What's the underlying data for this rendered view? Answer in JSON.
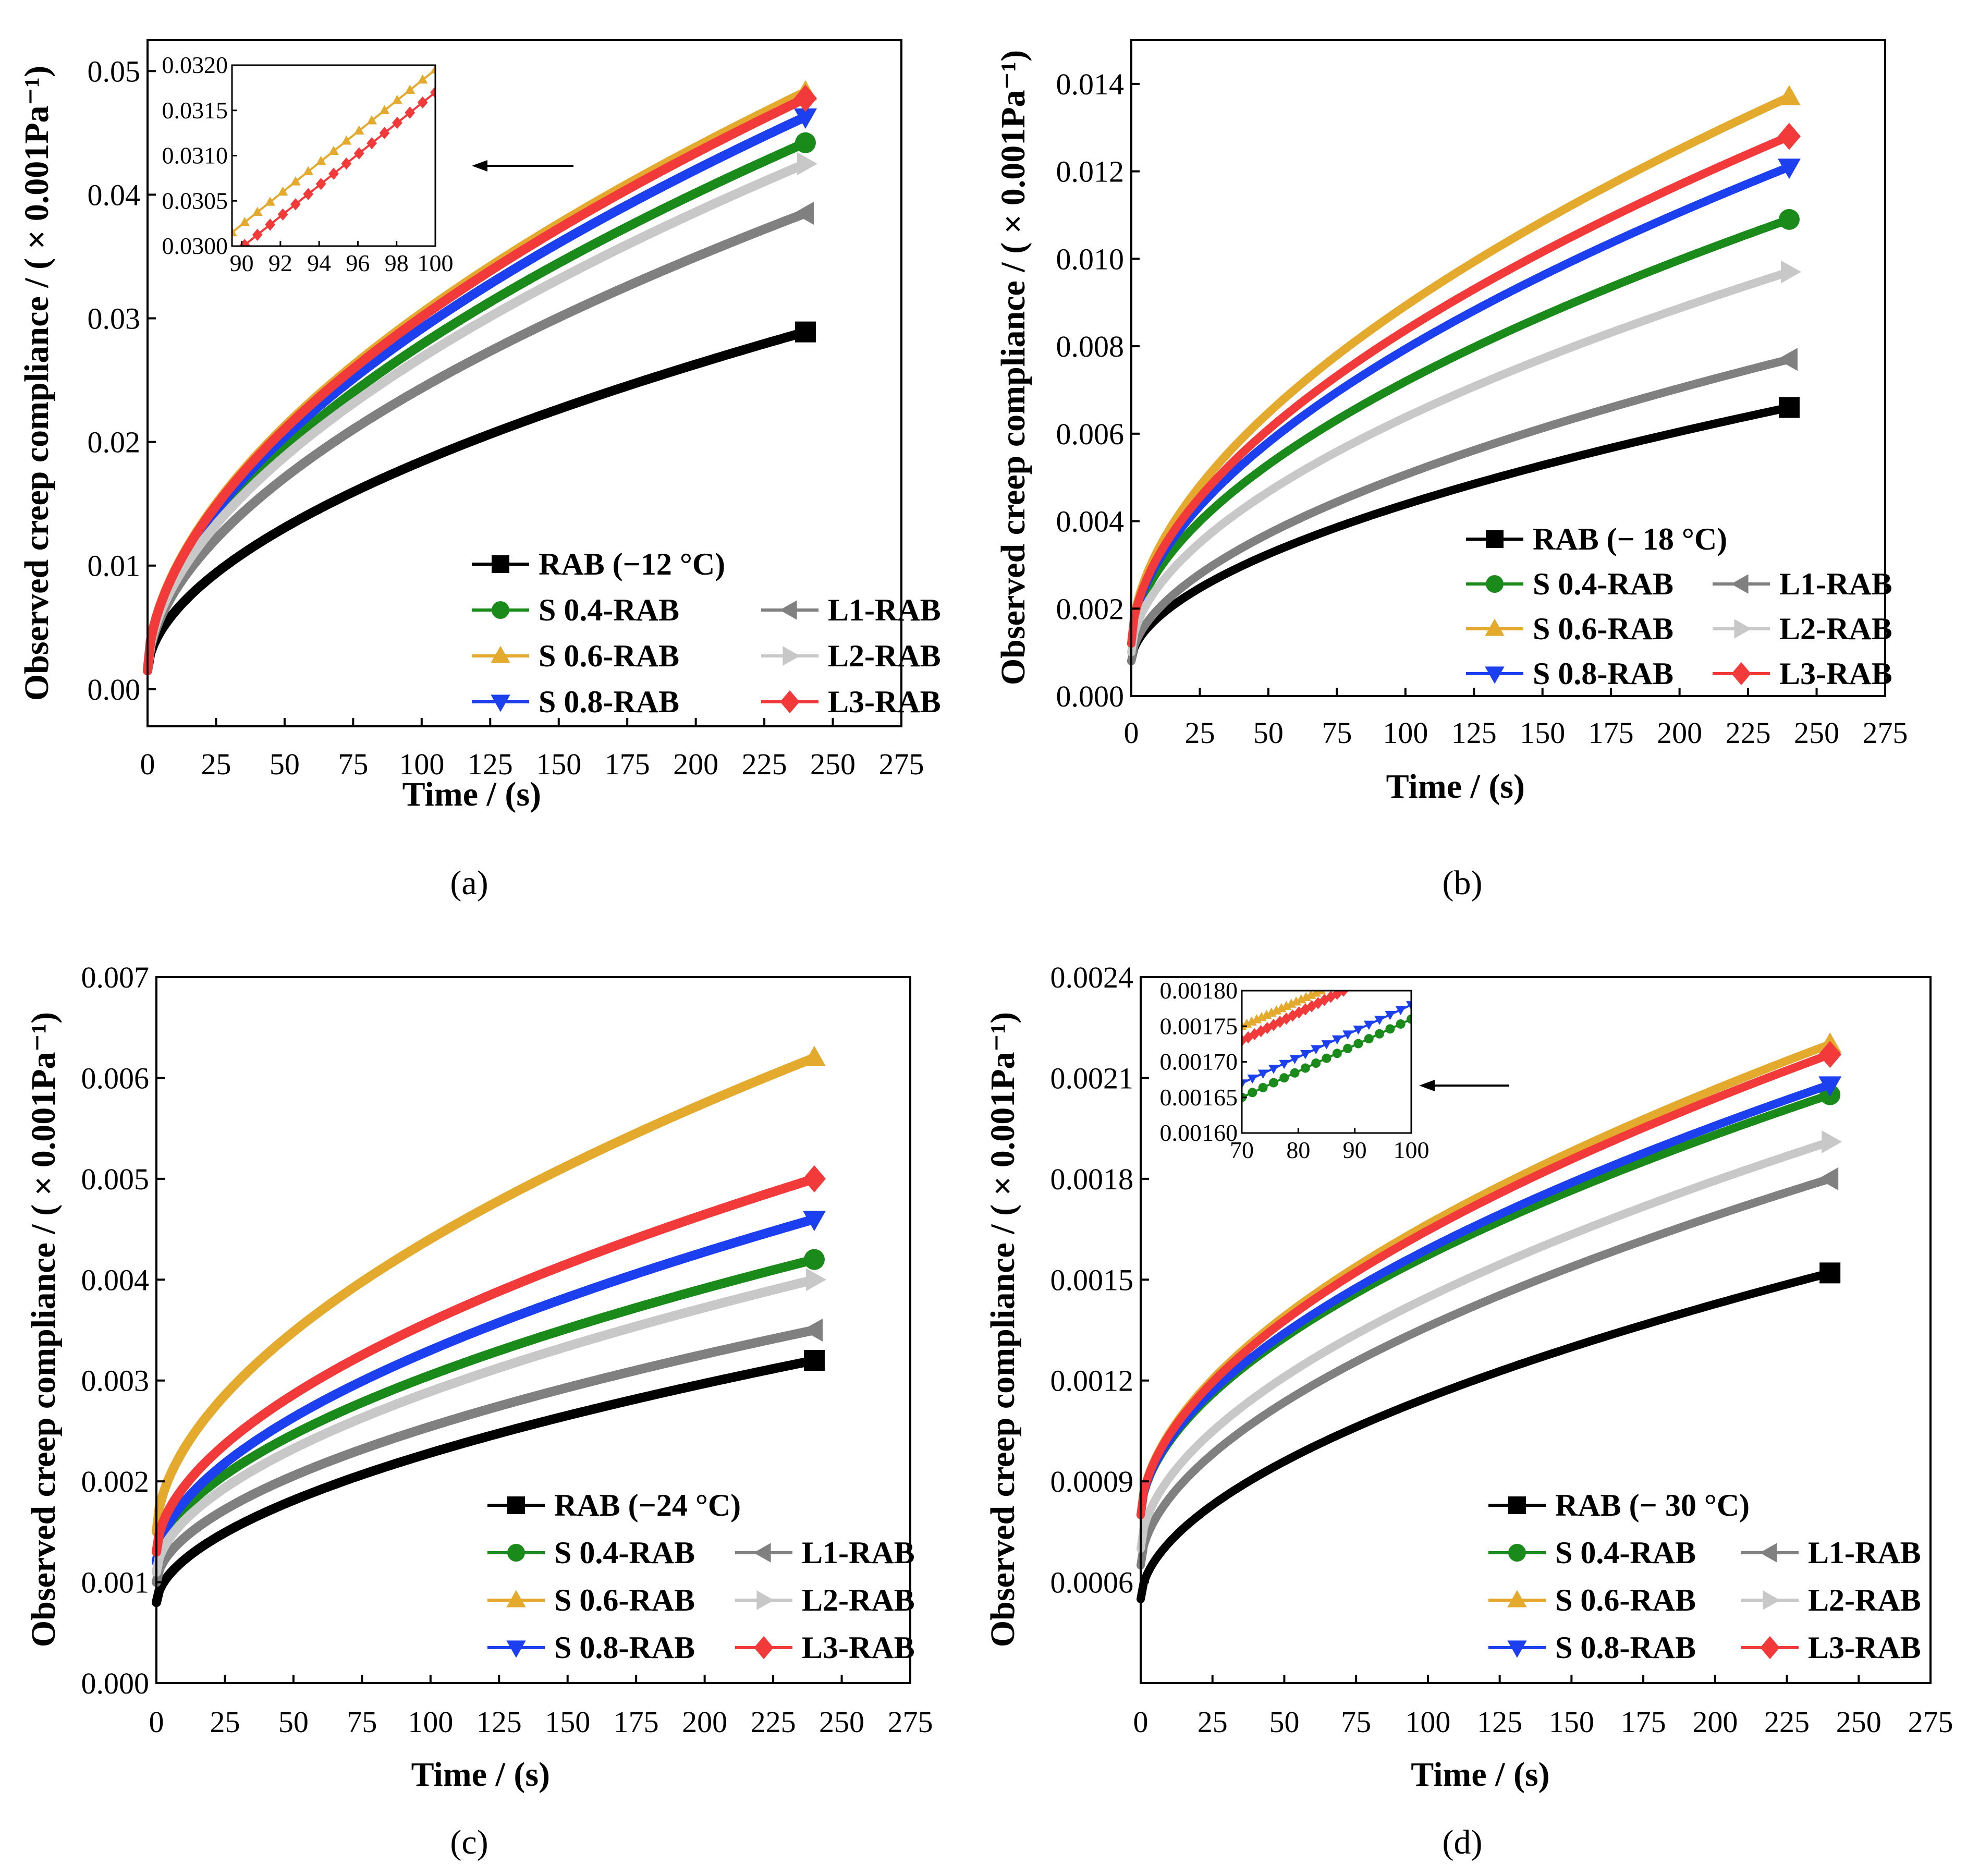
{
  "figure": {
    "series_names": [
      "RAB",
      "S 0.4-RAB",
      "S 0.6-RAB",
      "S 0.8-RAB",
      "L1-RAB",
      "L2-RAB",
      "L3-RAB"
    ],
    "colors": {
      "RAB": "#000000",
      "S 0.4-RAB": "#1a8a1a",
      "S 0.6-RAB": "#e3aa2e",
      "S 0.8-RAB": "#1c3ff0",
      "L1-RAB": "#808080",
      "L2-RAB": "#c8c8c8",
      "L3-RAB": "#f23a3a"
    },
    "markers": {
      "RAB": "square",
      "S 0.4-RAB": "circle",
      "S 0.6-RAB": "triangle-up",
      "S 0.8-RAB": "triangle-down",
      "L1-RAB": "triangle-left",
      "L2-RAB": "triangle-right",
      "L3-RAB": "diamond"
    }
  },
  "chart_data": [
    {
      "panel": "(a)",
      "type": "line",
      "xlabel": "Time / (s)",
      "ylabel": "Observed creep compliance / ( × 0.001Pa⁻¹)",
      "xlim": [
        0,
        275
      ],
      "ylim": [
        -0.003,
        0.0525
      ],
      "xticks": [
        0,
        25,
        50,
        75,
        100,
        125,
        150,
        175,
        200,
        225,
        250,
        275
      ],
      "xtick_labels": [
        "0",
        "25",
        "50",
        "75",
        "100",
        "125",
        "150",
        "175",
        "200",
        "225",
        "250",
        "275"
      ],
      "yticks": [
        0.0,
        0.01,
        0.02,
        0.03,
        0.04,
        0.05
      ],
      "ytick_labels": [
        "0.00",
        "0.01",
        "0.02",
        "0.03",
        "0.04",
        "0.05"
      ],
      "legend_title": "RAB (−12 °C)",
      "legend_labels": [
        "S 0.4-RAB",
        "S 0.6-RAB",
        "S 0.8-RAB",
        "L1-RAB",
        "L2-RAB",
        "L3-RAB"
      ],
      "series": [
        {
          "name": "RAB",
          "start": 0.0015,
          "end": 0.0289
        },
        {
          "name": "S 0.4-RAB",
          "start": 0.0015,
          "end": 0.0442
        },
        {
          "name": "S 0.6-RAB",
          "start": 0.0015,
          "end": 0.0483
        },
        {
          "name": "S 0.8-RAB",
          "start": 0.0015,
          "end": 0.0463
        },
        {
          "name": "L1-RAB",
          "start": 0.0015,
          "end": 0.0385
        },
        {
          "name": "L2-RAB",
          "start": 0.0015,
          "end": 0.0425
        },
        {
          "name": "L3-RAB",
          "start": 0.0015,
          "end": 0.0478
        }
      ],
      "inset": {
        "xlim": [
          89.5,
          100
        ],
        "ylim": [
          0.03,
          0.032
        ],
        "xticks": [
          90,
          92,
          94,
          96,
          98,
          100
        ],
        "xtick_labels": [
          "90",
          "92",
          "94",
          "96",
          "98",
          "100"
        ],
        "yticks": [
          0.03,
          0.0305,
          0.031,
          0.0315,
          0.032
        ],
        "ytick_labels": [
          "0.0300",
          "0.0305",
          "0.0310",
          "0.0315",
          "0.0320"
        ],
        "series": [
          {
            "name": "S 0.6-RAB",
            "x": [
              89.5,
              100
            ],
            "y": [
              0.03015,
              0.03195
            ]
          },
          {
            "name": "L3-RAB",
            "x": [
              89.5,
              100
            ],
            "y": [
              0.0299,
              0.0317
            ]
          }
        ]
      }
    },
    {
      "panel": "(b)",
      "type": "line",
      "xlabel": "Time / (s)",
      "ylabel": "Observed creep compliance / ( × 0.001Pa⁻¹)",
      "xlim": [
        0,
        275
      ],
      "ylim": [
        0,
        0.015
      ],
      "xticks": [
        0,
        25,
        50,
        75,
        100,
        125,
        150,
        175,
        200,
        225,
        250,
        275
      ],
      "xtick_labels": [
        "0",
        "25",
        "50",
        "75",
        "100",
        "125",
        "150",
        "175",
        "200",
        "225",
        "250",
        "275"
      ],
      "yticks": [
        0.0,
        0.002,
        0.004,
        0.006,
        0.008,
        0.01,
        0.012,
        0.014
      ],
      "ytick_labels": [
        "0.000",
        "0.002",
        "0.004",
        "0.006",
        "0.008",
        "0.010",
        "0.012",
        "0.014"
      ],
      "legend_title": "RAB (− 18 °C)",
      "legend_labels": [
        "S 0.4-RAB",
        "S 0.6-RAB",
        "S 0.8-RAB",
        "L1-RAB",
        "L2-RAB",
        "L3-RAB"
      ],
      "series": [
        {
          "name": "RAB",
          "start": 0.0008,
          "end": 0.0066
        },
        {
          "name": "S 0.4-RAB",
          "start": 0.0012,
          "end": 0.0109
        },
        {
          "name": "S 0.6-RAB",
          "start": 0.0012,
          "end": 0.0137
        },
        {
          "name": "S 0.8-RAB",
          "start": 0.0012,
          "end": 0.0121
        },
        {
          "name": "L1-RAB",
          "start": 0.0008,
          "end": 0.0077
        },
        {
          "name": "L2-RAB",
          "start": 0.001,
          "end": 0.0097
        },
        {
          "name": "L3-RAB",
          "start": 0.0012,
          "end": 0.0128
        }
      ]
    },
    {
      "panel": "(c)",
      "type": "line",
      "xlabel": "Time / (s)",
      "ylabel": "Observed creep compliance / ( × 0.001Pa⁻¹)",
      "xlim": [
        0,
        275
      ],
      "ylim": [
        0,
        0.007
      ],
      "xticks": [
        0,
        25,
        50,
        75,
        100,
        125,
        150,
        175,
        200,
        225,
        250,
        275
      ],
      "xtick_labels": [
        "0",
        "25",
        "50",
        "75",
        "100",
        "125",
        "150",
        "175",
        "200",
        "225",
        "250",
        "275"
      ],
      "yticks": [
        0.0,
        0.001,
        0.002,
        0.003,
        0.004,
        0.005,
        0.006,
        0.007
      ],
      "ytick_labels": [
        "0.000",
        "0.001",
        "0.002",
        "0.003",
        "0.004",
        "0.005",
        "0.006",
        "0.007"
      ],
      "legend_title": "RAB (−24 °C)",
      "legend_labels": [
        "S 0.4-RAB",
        "S 0.6-RAB",
        "S 0.8-RAB",
        "L1-RAB",
        "L2-RAB",
        "L3-RAB"
      ],
      "series": [
        {
          "name": "RAB",
          "start": 0.0008,
          "end": 0.0032
        },
        {
          "name": "S 0.4-RAB",
          "start": 0.0012,
          "end": 0.0042
        },
        {
          "name": "S 0.6-RAB",
          "start": 0.0015,
          "end": 0.0062
        },
        {
          "name": "S 0.8-RAB",
          "start": 0.0012,
          "end": 0.0046
        },
        {
          "name": "L1-RAB",
          "start": 0.001,
          "end": 0.0035
        },
        {
          "name": "L2-RAB",
          "start": 0.0011,
          "end": 0.004
        },
        {
          "name": "L3-RAB",
          "start": 0.0013,
          "end": 0.005
        }
      ]
    },
    {
      "panel": "(d)",
      "type": "line",
      "xlabel": "Time / (s)",
      "ylabel": "Observed creep compliance / ( × 0.001Pa⁻¹)",
      "xlim": [
        0,
        275
      ],
      "ylim": [
        0.0003,
        0.0024
      ],
      "xticks": [
        0,
        25,
        50,
        75,
        100,
        125,
        150,
        175,
        200,
        225,
        250,
        275
      ],
      "xtick_labels": [
        "0",
        "25",
        "50",
        "75",
        "100",
        "125",
        "150",
        "175",
        "200",
        "225",
        "250",
        "275"
      ],
      "yticks": [
        0.0006,
        0.0009,
        0.0012,
        0.0015,
        0.0018,
        0.0021,
        0.0024
      ],
      "ytick_labels": [
        "0.0006",
        "0.0009",
        "0.0012",
        "0.0015",
        "0.0018",
        "0.0021",
        "0.0024"
      ],
      "legend_title": "RAB (− 30 °C)",
      "legend_labels": [
        "S 0.4-RAB",
        "S 0.6-RAB",
        "S 0.8-RAB",
        "L1-RAB",
        "L2-RAB",
        "L3-RAB"
      ],
      "series": [
        {
          "name": "RAB",
          "start": 0.00055,
          "end": 0.00152
        },
        {
          "name": "S 0.4-RAB",
          "start": 0.0008,
          "end": 0.00205
        },
        {
          "name": "S 0.6-RAB",
          "start": 0.0008,
          "end": 0.0022
        },
        {
          "name": "S 0.8-RAB",
          "start": 0.0008,
          "end": 0.00208
        },
        {
          "name": "L1-RAB",
          "start": 0.00065,
          "end": 0.0018
        },
        {
          "name": "L2-RAB",
          "start": 0.0007,
          "end": 0.00191
        },
        {
          "name": "L3-RAB",
          "start": 0.0008,
          "end": 0.00217
        }
      ],
      "inset": {
        "xlim": [
          70,
          100
        ],
        "ylim": [
          0.0016,
          0.0018
        ],
        "xticks": [
          70,
          80,
          90,
          100
        ],
        "xtick_labels": [
          "70",
          "80",
          "90",
          "100"
        ],
        "yticks": [
          0.0016,
          0.00165,
          0.0017,
          0.00175,
          0.0018
        ],
        "ytick_labels": [
          "0.00160",
          "0.00165",
          "0.00170",
          "0.00175",
          "0.00180"
        ],
        "series": [
          {
            "name": "S 0.6-RAB",
            "x": [
              70,
              84
            ],
            "y": [
              0.00175,
              0.0018
            ]
          },
          {
            "name": "L3-RAB",
            "x": [
              70,
              88
            ],
            "y": [
              0.00173,
              0.0018
            ]
          },
          {
            "name": "S 0.8-RAB",
            "x": [
              70,
              100
            ],
            "y": [
              0.00167,
              0.00178
            ]
          },
          {
            "name": "S 0.4-RAB",
            "x": [
              70,
              100
            ],
            "y": [
              0.00165,
              0.00176
            ]
          }
        ]
      }
    }
  ]
}
